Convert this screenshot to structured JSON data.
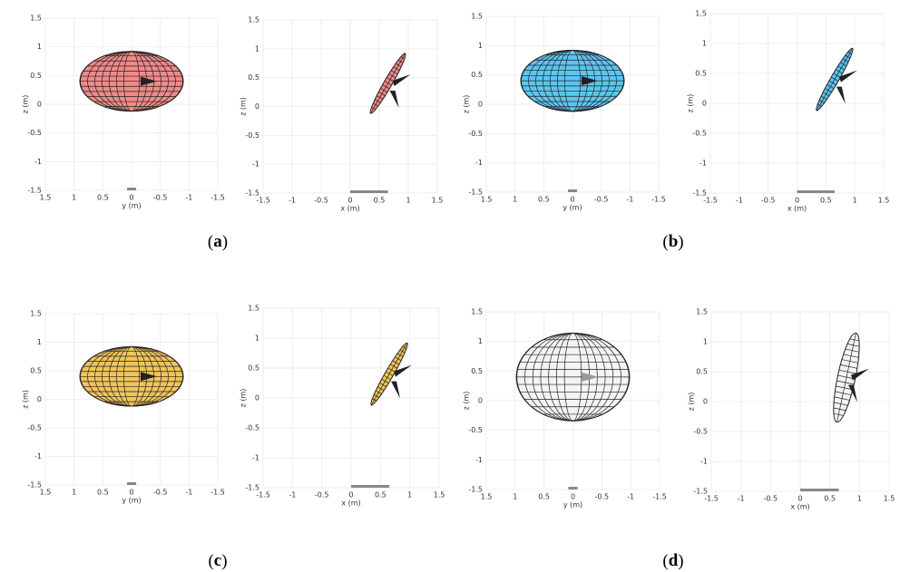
{
  "panels": [
    {
      "xlabel": "y (m)",
      "ylabel": "z (m)",
      "xlim": [
        1.5,
        -1.5
      ],
      "ylim": [
        -1.5,
        1.5
      ],
      "xticks": [
        1.5,
        1,
        0.5,
        0,
        -0.5,
        -1,
        -1.5
      ],
      "yticks": [
        -1.5,
        -1,
        -0.5,
        0,
        0.5,
        1,
        1.5
      ],
      "color": "#f08a8a"
    },
    {
      "xlabel": "x (m)",
      "ylabel": "z (m)",
      "xlim": [
        -1.5,
        1.5
      ],
      "ylim": [
        -1.5,
        1.5
      ],
      "xticks": [
        -1.5,
        -1,
        -0.5,
        0,
        0.5,
        1,
        1.5
      ],
      "yticks": [
        -1.5,
        -1,
        -0.5,
        0,
        0.5,
        1,
        1.5
      ],
      "color": "#f08a8a"
    },
    {
      "xlabel": "y (m)",
      "ylabel": "z (m)",
      "xlim": [
        1.5,
        -1.5
      ],
      "ylim": [
        -1.5,
        1.5
      ],
      "xticks": [
        1.5,
        1,
        0.5,
        0,
        -0.5,
        -1,
        -1.5
      ],
      "yticks": [
        -1.5,
        -1,
        -0.5,
        0,
        0.5,
        1,
        1.5
      ],
      "color": "#5cc6ef"
    },
    {
      "xlabel": "x (m)",
      "ylabel": "z (m)",
      "xlim": [
        -1.5,
        1.5
      ],
      "ylim": [
        -1.5,
        1.5
      ],
      "xticks": [
        -1.5,
        -1,
        -0.5,
        0,
        0.5,
        1,
        1.5
      ],
      "yticks": [
        -1.5,
        -1,
        -0.5,
        0,
        0.5,
        1,
        1.5
      ],
      "color": "#5cc6ef"
    },
    {
      "xlabel": "y (m)",
      "ylabel": "z (m)",
      "xlim": [
        1.5,
        -1.5
      ],
      "ylim": [
        -1.5,
        1.5
      ],
      "xticks": [
        1.5,
        1,
        0.5,
        0,
        -0.5,
        -1,
        -1.5
      ],
      "yticks": [
        -1.5,
        -1,
        -0.5,
        0,
        0.5,
        1,
        1.5
      ],
      "color": "#f2c45a"
    },
    {
      "xlabel": "x (m)",
      "ylabel": "z (m)",
      "xlim": [
        -1.5,
        1.5
      ],
      "ylim": [
        -1.5,
        1.5
      ],
      "xticks": [
        -1.5,
        -1,
        -0.5,
        0,
        0.5,
        1,
        1.5
      ],
      "yticks": [
        -1.5,
        -1,
        -0.5,
        0,
        0.5,
        1,
        1.5
      ],
      "color": "#f2c45a"
    },
    {
      "xlabel": "y (m)",
      "ylabel": "z (m)",
      "xlim": [
        1.5,
        -1.5
      ],
      "ylim": [
        -1.5,
        1.5
      ],
      "xticks": [
        1.5,
        1,
        0.5,
        0,
        -0.5,
        -1,
        -1.5
      ],
      "yticks": [
        -1.5,
        -1,
        -0.5,
        0,
        0.5,
        1,
        1.5
      ],
      "color": "#f4f4f4"
    },
    {
      "xlabel": "x (m)",
      "ylabel": "z (m)",
      "xlim": [
        -1.5,
        1.5
      ],
      "ylim": [
        -1.5,
        1.5
      ],
      "xticks": [
        -1.5,
        -1,
        -0.5,
        0,
        0.5,
        1,
        1.5
      ],
      "yticks": [
        -1.5,
        -1,
        -0.5,
        0,
        0.5,
        1,
        1.5
      ],
      "color": "#f4f4f4"
    }
  ],
  "captions": [
    "a",
    "b",
    "c",
    "d"
  ]
}
